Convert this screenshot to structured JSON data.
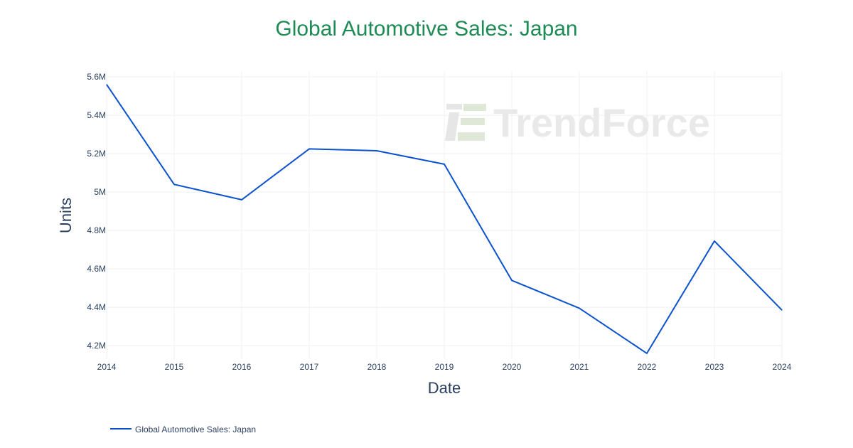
{
  "colors": {
    "title": "#1e8a55",
    "line": "#0b52cf",
    "grid": "#eef0f3",
    "watermark": "#e9e9e9"
  },
  "watermark": {
    "text": "TrendForce"
  },
  "chart_data": {
    "type": "line",
    "title": "Global Automotive Sales: Japan",
    "xlabel": "Date",
    "ylabel": "Units",
    "x": [
      2014,
      2015,
      2016,
      2017,
      2018,
      2019,
      2020,
      2021,
      2022,
      2023,
      2024
    ],
    "x_tick_labels": [
      "2014",
      "2015",
      "2016",
      "2017",
      "2018",
      "2019",
      "2020",
      "2021",
      "2022",
      "2023",
      "2024"
    ],
    "y_ticks": [
      4200000,
      4400000,
      4600000,
      4800000,
      5000000,
      5200000,
      5400000,
      5600000
    ],
    "y_tick_labels": [
      "4.2M",
      "4.4M",
      "4.6M",
      "4.8M",
      "5M",
      "5.2M",
      "5.4M",
      "5.6M"
    ],
    "ylim": [
      4130000,
      5630000
    ],
    "xlim": [
      2014,
      2024
    ],
    "grid": true,
    "legend_position": "bottom-left",
    "series": [
      {
        "name": "Global Automotive Sales: Japan",
        "values": [
          5560000,
          5040000,
          4960000,
          5225000,
          5215000,
          5145000,
          4540000,
          4395000,
          4160000,
          4745000,
          4385000
        ]
      }
    ]
  }
}
